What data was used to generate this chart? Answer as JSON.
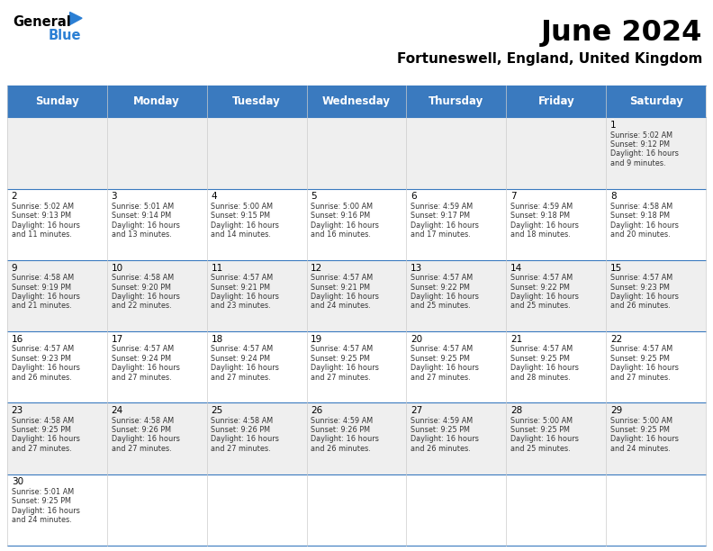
{
  "title": "June 2024",
  "subtitle": "Fortuneswell, England, United Kingdom",
  "days_of_week": [
    "Sunday",
    "Monday",
    "Tuesday",
    "Wednesday",
    "Thursday",
    "Friday",
    "Saturday"
  ],
  "header_color": "#3a7abf",
  "header_text_color": "#ffffff",
  "bg_color": "#ffffff",
  "alt_row_color": "#efefef",
  "cell_border_color": "#3a7abf",
  "day_num_color": "#000000",
  "text_color": "#333333",
  "title_color": "#000000",
  "subtitle_color": "#000000",
  "calendar_data": [
    [
      {
        "day": null,
        "sunrise": null,
        "sunset": null,
        "daylight": null
      },
      {
        "day": null,
        "sunrise": null,
        "sunset": null,
        "daylight": null
      },
      {
        "day": null,
        "sunrise": null,
        "sunset": null,
        "daylight": null
      },
      {
        "day": null,
        "sunrise": null,
        "sunset": null,
        "daylight": null
      },
      {
        "day": null,
        "sunrise": null,
        "sunset": null,
        "daylight": null
      },
      {
        "day": null,
        "sunrise": null,
        "sunset": null,
        "daylight": null
      },
      {
        "day": 1,
        "sunrise": "5:02 AM",
        "sunset": "9:12 PM",
        "daylight": "16 hours\nand 9 minutes."
      }
    ],
    [
      {
        "day": 2,
        "sunrise": "5:02 AM",
        "sunset": "9:13 PM",
        "daylight": "16 hours\nand 11 minutes."
      },
      {
        "day": 3,
        "sunrise": "5:01 AM",
        "sunset": "9:14 PM",
        "daylight": "16 hours\nand 13 minutes."
      },
      {
        "day": 4,
        "sunrise": "5:00 AM",
        "sunset": "9:15 PM",
        "daylight": "16 hours\nand 14 minutes."
      },
      {
        "day": 5,
        "sunrise": "5:00 AM",
        "sunset": "9:16 PM",
        "daylight": "16 hours\nand 16 minutes."
      },
      {
        "day": 6,
        "sunrise": "4:59 AM",
        "sunset": "9:17 PM",
        "daylight": "16 hours\nand 17 minutes."
      },
      {
        "day": 7,
        "sunrise": "4:59 AM",
        "sunset": "9:18 PM",
        "daylight": "16 hours\nand 18 minutes."
      },
      {
        "day": 8,
        "sunrise": "4:58 AM",
        "sunset": "9:18 PM",
        "daylight": "16 hours\nand 20 minutes."
      }
    ],
    [
      {
        "day": 9,
        "sunrise": "4:58 AM",
        "sunset": "9:19 PM",
        "daylight": "16 hours\nand 21 minutes."
      },
      {
        "day": 10,
        "sunrise": "4:58 AM",
        "sunset": "9:20 PM",
        "daylight": "16 hours\nand 22 minutes."
      },
      {
        "day": 11,
        "sunrise": "4:57 AM",
        "sunset": "9:21 PM",
        "daylight": "16 hours\nand 23 minutes."
      },
      {
        "day": 12,
        "sunrise": "4:57 AM",
        "sunset": "9:21 PM",
        "daylight": "16 hours\nand 24 minutes."
      },
      {
        "day": 13,
        "sunrise": "4:57 AM",
        "sunset": "9:22 PM",
        "daylight": "16 hours\nand 25 minutes."
      },
      {
        "day": 14,
        "sunrise": "4:57 AM",
        "sunset": "9:22 PM",
        "daylight": "16 hours\nand 25 minutes."
      },
      {
        "day": 15,
        "sunrise": "4:57 AM",
        "sunset": "9:23 PM",
        "daylight": "16 hours\nand 26 minutes."
      }
    ],
    [
      {
        "day": 16,
        "sunrise": "4:57 AM",
        "sunset": "9:23 PM",
        "daylight": "16 hours\nand 26 minutes."
      },
      {
        "day": 17,
        "sunrise": "4:57 AM",
        "sunset": "9:24 PM",
        "daylight": "16 hours\nand 27 minutes."
      },
      {
        "day": 18,
        "sunrise": "4:57 AM",
        "sunset": "9:24 PM",
        "daylight": "16 hours\nand 27 minutes."
      },
      {
        "day": 19,
        "sunrise": "4:57 AM",
        "sunset": "9:25 PM",
        "daylight": "16 hours\nand 27 minutes."
      },
      {
        "day": 20,
        "sunrise": "4:57 AM",
        "sunset": "9:25 PM",
        "daylight": "16 hours\nand 27 minutes."
      },
      {
        "day": 21,
        "sunrise": "4:57 AM",
        "sunset": "9:25 PM",
        "daylight": "16 hours\nand 28 minutes."
      },
      {
        "day": 22,
        "sunrise": "4:57 AM",
        "sunset": "9:25 PM",
        "daylight": "16 hours\nand 27 minutes."
      }
    ],
    [
      {
        "day": 23,
        "sunrise": "4:58 AM",
        "sunset": "9:25 PM",
        "daylight": "16 hours\nand 27 minutes."
      },
      {
        "day": 24,
        "sunrise": "4:58 AM",
        "sunset": "9:26 PM",
        "daylight": "16 hours\nand 27 minutes."
      },
      {
        "day": 25,
        "sunrise": "4:58 AM",
        "sunset": "9:26 PM",
        "daylight": "16 hours\nand 27 minutes."
      },
      {
        "day": 26,
        "sunrise": "4:59 AM",
        "sunset": "9:26 PM",
        "daylight": "16 hours\nand 26 minutes."
      },
      {
        "day": 27,
        "sunrise": "4:59 AM",
        "sunset": "9:25 PM",
        "daylight": "16 hours\nand 26 minutes."
      },
      {
        "day": 28,
        "sunrise": "5:00 AM",
        "sunset": "9:25 PM",
        "daylight": "16 hours\nand 25 minutes."
      },
      {
        "day": 29,
        "sunrise": "5:00 AM",
        "sunset": "9:25 PM",
        "daylight": "16 hours\nand 24 minutes."
      }
    ],
    [
      {
        "day": 30,
        "sunrise": "5:01 AM",
        "sunset": "9:25 PM",
        "daylight": "16 hours\nand 24 minutes."
      },
      {
        "day": null,
        "sunrise": null,
        "sunset": null,
        "daylight": null
      },
      {
        "day": null,
        "sunrise": null,
        "sunset": null,
        "daylight": null
      },
      {
        "day": null,
        "sunrise": null,
        "sunset": null,
        "daylight": null
      },
      {
        "day": null,
        "sunrise": null,
        "sunset": null,
        "daylight": null
      },
      {
        "day": null,
        "sunrise": null,
        "sunset": null,
        "daylight": null
      },
      {
        "day": null,
        "sunrise": null,
        "sunset": null,
        "daylight": null
      }
    ]
  ]
}
